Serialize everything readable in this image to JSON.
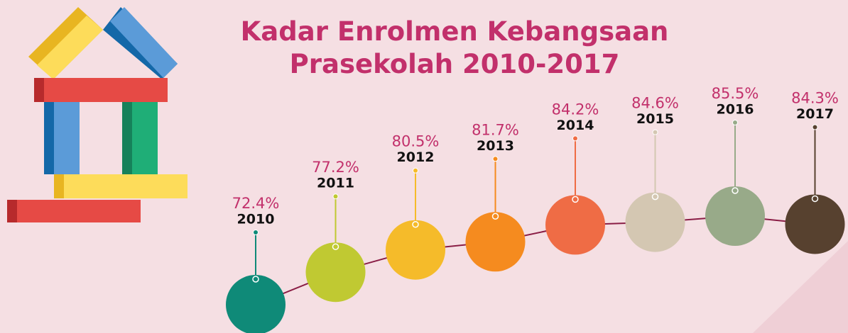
{
  "chart_data": {
    "type": "line",
    "title": "Kadar Enrolmen Kebangsaan Prasekolah 2010-2017",
    "categories": [
      "2010",
      "2011",
      "2012",
      "2013",
      "2014",
      "2015",
      "2016",
      "2017"
    ],
    "values": [
      72.4,
      77.2,
      80.5,
      81.7,
      84.2,
      84.6,
      85.5,
      84.3
    ],
    "value_labels": [
      "72.4%",
      "77.2%",
      "80.5%",
      "81.7%",
      "84.2%",
      "84.6%",
      "85.5%",
      "84.3%"
    ],
    "colors": [
      "#0f8a78",
      "#c0c932",
      "#f5bb2a",
      "#f58b1f",
      "#ef6c45",
      "#d4c7b2",
      "#98aa89",
      "#57412f"
    ],
    "line_color": "#8a1d45"
  }
}
